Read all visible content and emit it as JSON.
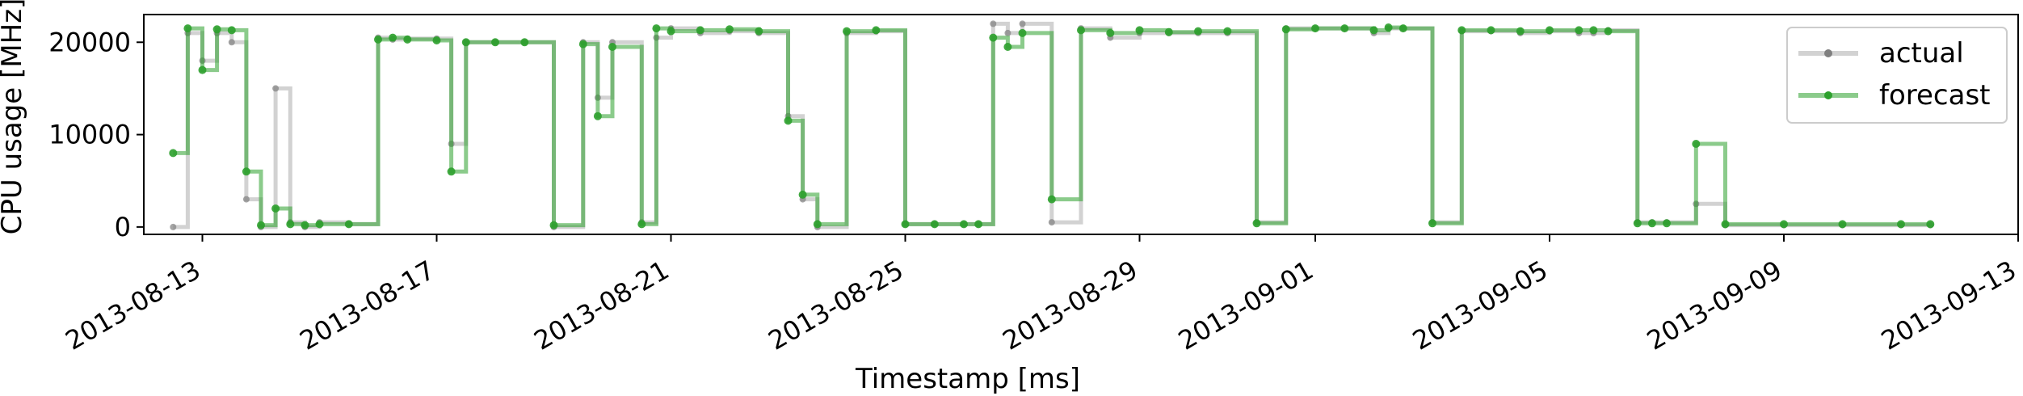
{
  "chart_data": {
    "type": "line",
    "xlabel": "Timestamp [ms]",
    "ylabel": "CPU usage [MHz]",
    "xlim": [
      "2013-08-12",
      "2013-09-13"
    ],
    "ylim": [
      -800,
      23000
    ],
    "x_ticks": [
      "2013-08-13",
      "2013-08-17",
      "2013-08-21",
      "2013-08-25",
      "2013-08-29",
      "2013-09-01",
      "2013-09-05",
      "2013-09-09",
      "2013-09-13"
    ],
    "y_ticks": [
      0,
      10000,
      20000
    ],
    "grid": false,
    "legend_position": "top-right",
    "colors": {
      "actual": "#7f7f7f",
      "forecast": "#2ca02c"
    },
    "series": [
      {
        "name": "actual",
        "x": [
          "2013-08-12 12:00",
          "2013-08-12 18:00",
          "2013-08-13 00:00",
          "2013-08-13 06:00",
          "2013-08-13 12:00",
          "2013-08-13 18:00",
          "2013-08-14 00:00",
          "2013-08-14 06:00",
          "2013-08-14 12:00",
          "2013-08-14 18:00",
          "2013-08-15 00:00",
          "2013-08-15 12:00",
          "2013-08-16 00:00",
          "2013-08-16 06:00",
          "2013-08-16 12:00",
          "2013-08-17 00:00",
          "2013-08-17 06:00",
          "2013-08-17 12:00",
          "2013-08-18 00:00",
          "2013-08-18 12:00",
          "2013-08-19 00:00",
          "2013-08-19 12:00",
          "2013-08-19 18:00",
          "2013-08-20 00:00",
          "2013-08-20 12:00",
          "2013-08-20 18:00",
          "2013-08-21 00:00",
          "2013-08-21 12:00",
          "2013-08-22 00:00",
          "2013-08-22 12:00",
          "2013-08-23 00:00",
          "2013-08-23 06:00",
          "2013-08-23 12:00",
          "2013-08-24 00:00",
          "2013-08-24 12:00",
          "2013-08-25 00:00",
          "2013-08-25 12:00",
          "2013-08-26 00:00",
          "2013-08-26 06:00",
          "2013-08-26 12:00",
          "2013-08-26 18:00",
          "2013-08-27 00:00",
          "2013-08-27 12:00",
          "2013-08-28 00:00",
          "2013-08-28 12:00",
          "2013-08-29 00:00",
          "2013-08-29 12:00",
          "2013-08-30 00:00",
          "2013-08-30 12:00",
          "2013-08-31 00:00",
          "2013-08-31 12:00",
          "2013-09-01 00:00",
          "2013-09-01 12:00",
          "2013-09-02 00:00",
          "2013-09-02 06:00",
          "2013-09-02 12:00",
          "2013-09-03 00:00",
          "2013-09-03 12:00",
          "2013-09-04 00:00",
          "2013-09-04 12:00",
          "2013-09-05 00:00",
          "2013-09-05 12:00",
          "2013-09-05 18:00",
          "2013-09-06 00:00",
          "2013-09-06 12:00",
          "2013-09-06 18:00",
          "2013-09-07 00:00",
          "2013-09-07 12:00",
          "2013-09-08 00:00",
          "2013-09-09 00:00",
          "2013-09-10 00:00",
          "2013-09-11 00:00",
          "2013-09-11 12:00"
        ],
        "values": [
          0,
          21000,
          18000,
          21000,
          20000,
          3000,
          0,
          15000,
          500,
          0,
          500,
          300,
          20500,
          20300,
          20400,
          20400,
          9000,
          20000,
          20000,
          20000,
          0,
          20000,
          14000,
          20000,
          500,
          20500,
          21500,
          21000,
          21200,
          21000,
          12000,
          3000,
          0,
          21000,
          21200,
          300,
          300,
          300,
          300,
          22000,
          21000,
          22000,
          500,
          21500,
          20500,
          21000,
          21000,
          21000,
          21000,
          500,
          21500,
          21500,
          21500,
          21000,
          21500,
          21500,
          500,
          21200,
          21200,
          21000,
          21200,
          21000,
          21000,
          21300,
          500,
          500,
          500,
          2500,
          200,
          200,
          200,
          200,
          200
        ]
      },
      {
        "name": "forecast",
        "x": [
          "2013-08-12 12:00",
          "2013-08-12 18:00",
          "2013-08-13 00:00",
          "2013-08-13 06:00",
          "2013-08-13 12:00",
          "2013-08-13 18:00",
          "2013-08-14 00:00",
          "2013-08-14 06:00",
          "2013-08-14 12:00",
          "2013-08-14 18:00",
          "2013-08-15 00:00",
          "2013-08-15 12:00",
          "2013-08-16 00:00",
          "2013-08-16 06:00",
          "2013-08-16 12:00",
          "2013-08-17 00:00",
          "2013-08-17 06:00",
          "2013-08-17 12:00",
          "2013-08-18 00:00",
          "2013-08-18 12:00",
          "2013-08-19 00:00",
          "2013-08-19 12:00",
          "2013-08-19 18:00",
          "2013-08-20 00:00",
          "2013-08-20 12:00",
          "2013-08-20 18:00",
          "2013-08-21 00:00",
          "2013-08-21 12:00",
          "2013-08-22 00:00",
          "2013-08-22 12:00",
          "2013-08-23 00:00",
          "2013-08-23 06:00",
          "2013-08-23 12:00",
          "2013-08-24 00:00",
          "2013-08-24 12:00",
          "2013-08-25 00:00",
          "2013-08-25 12:00",
          "2013-08-26 00:00",
          "2013-08-26 06:00",
          "2013-08-26 12:00",
          "2013-08-26 18:00",
          "2013-08-27 00:00",
          "2013-08-27 12:00",
          "2013-08-28 00:00",
          "2013-08-28 12:00",
          "2013-08-29 00:00",
          "2013-08-29 12:00",
          "2013-08-30 00:00",
          "2013-08-30 12:00",
          "2013-08-31 00:00",
          "2013-08-31 12:00",
          "2013-09-01 00:00",
          "2013-09-01 12:00",
          "2013-09-02 00:00",
          "2013-09-02 06:00",
          "2013-09-02 12:00",
          "2013-09-03 00:00",
          "2013-09-03 12:00",
          "2013-09-04 00:00",
          "2013-09-04 12:00",
          "2013-09-05 00:00",
          "2013-09-05 12:00",
          "2013-09-05 18:00",
          "2013-09-06 00:00",
          "2013-09-06 12:00",
          "2013-09-06 18:00",
          "2013-09-07 00:00",
          "2013-09-07 12:00",
          "2013-09-08 00:00",
          "2013-09-09 00:00",
          "2013-09-10 00:00",
          "2013-09-11 00:00",
          "2013-09-11 12:00"
        ],
        "values": [
          8000,
          21500,
          17000,
          21400,
          21300,
          6000,
          200,
          2000,
          300,
          200,
          300,
          300,
          20300,
          20500,
          20300,
          20200,
          6000,
          20000,
          20000,
          20000,
          200,
          19800,
          12000,
          19500,
          300,
          21500,
          21200,
          21300,
          21400,
          21200,
          11500,
          3500,
          300,
          21200,
          21300,
          300,
          300,
          300,
          300,
          20500,
          19500,
          21000,
          3000,
          21300,
          21000,
          21300,
          21100,
          21200,
          21200,
          400,
          21400,
          21500,
          21500,
          21300,
          21600,
          21500,
          400,
          21300,
          21300,
          21200,
          21300,
          21300,
          21300,
          21200,
          400,
          400,
          400,
          9000,
          300,
          300,
          300,
          300,
          300
        ]
      }
    ]
  }
}
